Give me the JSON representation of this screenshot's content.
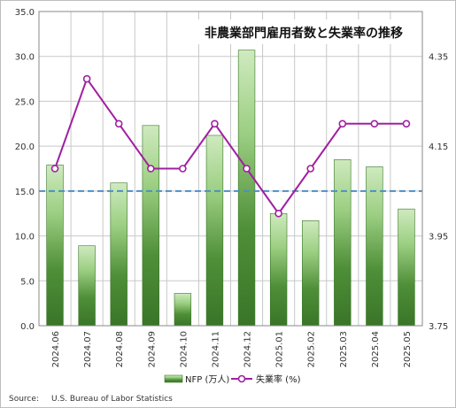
{
  "chart_data": {
    "type": "bar",
    "title": "非農業部門雇用者数と失業率の推移",
    "categories": [
      "2024.06",
      "2024.07",
      "2024.08",
      "2024.09",
      "2024.10",
      "2024.11",
      "2024.12",
      "2025.01",
      "2025.02",
      "2025.03",
      "2025.04",
      "2025.05"
    ],
    "series": [
      {
        "name": "NFP (万人)",
        "kind": "bar",
        "axis": "left",
        "values": [
          17.9,
          8.9,
          15.9,
          22.3,
          3.6,
          21.2,
          30.7,
          12.5,
          11.7,
          18.5,
          17.7,
          13.0
        ],
        "color": "#4e8f35"
      },
      {
        "name": "失業率 (%)",
        "kind": "line",
        "axis": "right",
        "values": [
          4.1,
          4.3,
          4.2,
          4.1,
          4.1,
          4.2,
          4.1,
          4.0,
          4.1,
          4.2,
          4.2,
          4.2
        ],
        "color": "#a020a0"
      }
    ],
    "reference_line": {
      "axis": "left",
      "value": 15.0,
      "color": "#4a90c8",
      "style": "dashed"
    },
    "ylim": [
      0,
      35
    ],
    "yticks": [
      "0.0",
      "5.0",
      "10.0",
      "15.0",
      "20.0",
      "25.0",
      "30.0",
      "35.0"
    ],
    "ylim_right": [
      3.75,
      4.45
    ],
    "yticks_right": [
      "3.75",
      "3.95",
      "4.15",
      "4.35"
    ],
    "grid": true,
    "legend_position": "bottom"
  },
  "source": {
    "label": "Source:",
    "text": "U.S. Bureau of Labor Statistics"
  },
  "colors": {
    "bar_dark": "#3f7e2c",
    "bar_light": "#c6e6b4",
    "line": "#a020a0",
    "reference": "#4a90c8",
    "grid": "#c8c8c8",
    "plot_border": "#8a8a8a"
  }
}
